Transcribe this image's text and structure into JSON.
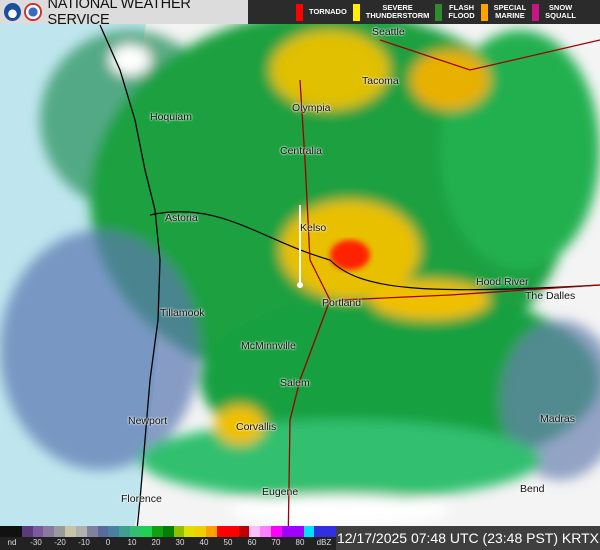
{
  "header": {
    "title": "NATIONAL WEATHER SERVICE",
    "warnings": [
      {
        "label": "TORNADO",
        "color": "#ff0000"
      },
      {
        "label": "SEVERE\nTHUNDERSTORM",
        "color": "#ffee00"
      },
      {
        "label": "FLASH\nFLOOD",
        "color": "#2e8b2e"
      },
      {
        "label": "SPECIAL\nMARINE",
        "color": "#ffa500"
      },
      {
        "label": "SNOW\nSQUALL",
        "color": "#c71585"
      }
    ]
  },
  "cities": [
    "Seattle",
    "Tacoma",
    "Olympia",
    "Hoquiam",
    "Centralia",
    "Astoria",
    "Kelso",
    "Hood River",
    "The Dalles",
    "Tillamook",
    "Portland",
    "McMinnville",
    "Salem",
    "Newport",
    "Corvallis",
    "Madras",
    "Eugene",
    "Florence",
    "Bend"
  ],
  "legend": {
    "ticks": [
      "nd",
      "-30",
      "-20",
      "-10",
      "0",
      "10",
      "20",
      "30",
      "40",
      "50",
      "60",
      "70",
      "80",
      "dBZ"
    ],
    "colors": [
      "#111111",
      "#111111",
      "#5a3a7a",
      "#7a5a9a",
      "#8a7aa0",
      "#9a9a9a",
      "#c8c4a8",
      "#b0b0b0",
      "#8080a0",
      "#5a6aa0",
      "#4a80a0",
      "#40a090",
      "#30c070",
      "#20d050",
      "#10a010",
      "#008000",
      "#90c000",
      "#e0e000",
      "#f0d000",
      "#ffa000",
      "#ff0000",
      "#ff0000",
      "#c00000",
      "#ffc0ff",
      "#ff80ff",
      "#ff00ff",
      "#a000ff",
      "#a000ff",
      "#00e0ff",
      "#3030e0",
      "#3030e0"
    ]
  },
  "footer": {
    "timestamp": "12/17/2025 07:48 UTC (23:48 PST)",
    "station": "KRTX"
  }
}
